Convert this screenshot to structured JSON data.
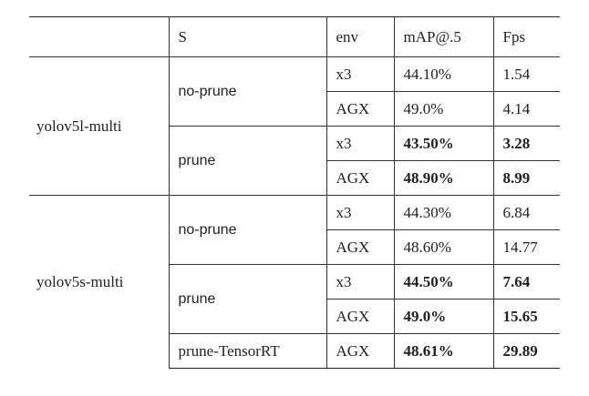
{
  "table": {
    "header": [
      "",
      "S",
      "env",
      "mAP@.5",
      "Fps"
    ],
    "groups": [
      {
        "model": "yolov5l-multi",
        "settings": [
          {
            "name": "no-prune",
            "bold": false,
            "runs": [
              {
                "env": "x3",
                "map": "44.10%",
                "fps": "1.54"
              },
              {
                "env": "AGX",
                "map": "49.0%",
                "fps": "4.14"
              }
            ]
          },
          {
            "name": "prune",
            "bold": true,
            "runs": [
              {
                "env": "x3",
                "map": "43.50%",
                "fps": "3.28"
              },
              {
                "env": "AGX",
                "map": "48.90%",
                "fps": "8.99"
              }
            ]
          }
        ]
      },
      {
        "model": "yolov5s-multi",
        "settings": [
          {
            "name": "no-prune",
            "bold": false,
            "runs": [
              {
                "env": "x3",
                "map": "44.30%",
                "fps": "6.84"
              },
              {
                "env": "AGX",
                "map": "48.60%",
                "fps": "14.77"
              }
            ]
          },
          {
            "name": "prune",
            "bold": true,
            "runs": [
              {
                "env": "x3",
                "map": "44.50%",
                "fps": "7.64"
              },
              {
                "env": "AGX",
                "map": "49.0%",
                "fps": "15.65"
              }
            ]
          },
          {
            "name": "prune-TensorRT",
            "bold": true,
            "runs": [
              {
                "env": "AGX",
                "map": "48.61%",
                "fps": "29.89"
              }
            ]
          }
        ]
      }
    ]
  }
}
